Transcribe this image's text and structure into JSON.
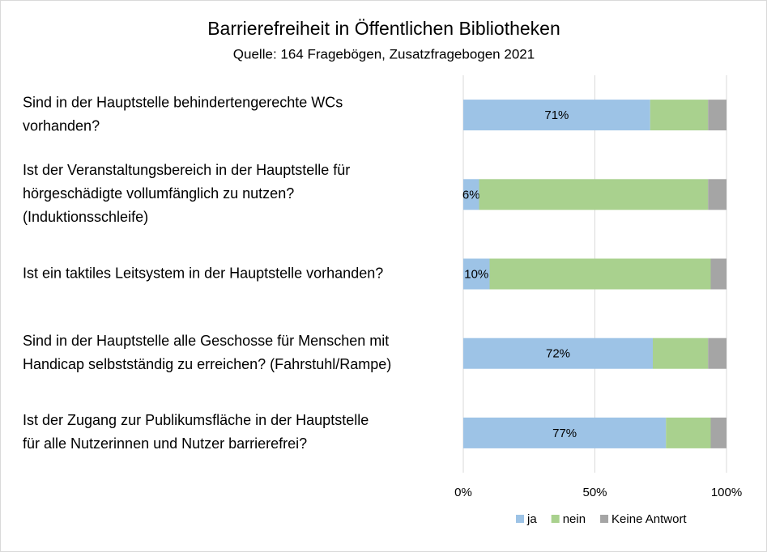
{
  "chart_data": {
    "type": "stacked-bar-horizontal",
    "title": "Barrierefreiheit in Öffentlichen Bibliotheken",
    "subtitle": "Quelle: 164 Fragebögen, Zusatzfragebogen 2021",
    "categories": [
      [
        "Sind in der Hauptstelle behindertengerechte WCs",
        "vorhanden?"
      ],
      [
        "Ist der Veranstaltungsbereich in der Hauptstelle für",
        "hörgeschädigte vollumfänglich zu nutzen?",
        "(Induktionsschleife)"
      ],
      [
        "Ist ein taktiles Leitsystem in der Hauptstelle vorhanden?"
      ],
      [
        "Sind in der Hauptstelle alle Geschosse für Menschen mit",
        "Handicap selbstständig zu erreichen? (Fahrstuhl/Rampe)"
      ],
      [
        "Ist der Zugang zur Publikumsfläche in der Hauptstelle",
        "für alle Nutzerinnen und Nutzer barrierefrei?"
      ]
    ],
    "series": [
      {
        "name": "ja",
        "color": "#9dc3e6",
        "values": [
          71,
          6,
          10,
          72,
          77
        ],
        "value_labels": [
          "71%",
          "6%",
          "10%",
          "72%",
          "77%"
        ]
      },
      {
        "name": "nein",
        "color": "#a9d18e",
        "values": [
          22,
          87,
          84,
          21,
          17
        ]
      },
      {
        "name": "Keine Antwort",
        "color": "#a5a5a5",
        "values": [
          7,
          7,
          6,
          7,
          6
        ]
      }
    ],
    "xlim": [
      0,
      100
    ],
    "xticks": [
      {
        "value": 0,
        "label": "0%"
      },
      {
        "value": 50,
        "label": "50%"
      },
      {
        "value": 100,
        "label": "100%"
      }
    ],
    "grid": true,
    "legend": "bottom"
  }
}
